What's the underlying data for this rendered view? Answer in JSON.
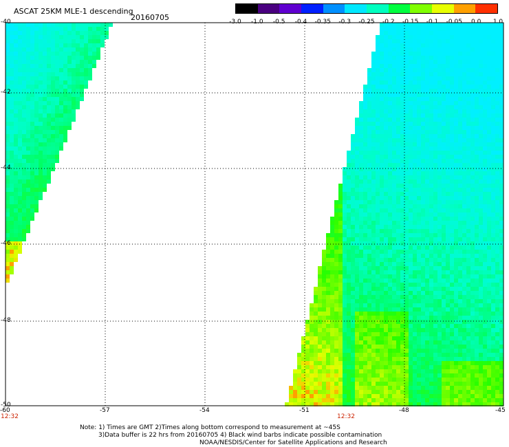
{
  "header": {
    "title": "ASCAT 25KM MLE-1 descending",
    "date": "20160705"
  },
  "colorbar": {
    "labels": [
      "-3.0",
      "-1.0",
      "-0.5",
      "-0.4",
      "-0.35",
      "-0.3",
      "-0.25",
      "-0.2",
      "-0.15",
      "-0.1",
      "-0.05",
      "0.0",
      "1.0"
    ],
    "colors": [
      "#000000",
      "#4a0080",
      "#6000d0",
      "#0020ff",
      "#0090ff",
      "#00e8ff",
      "#00ffc0",
      "#00ff40",
      "#80ff00",
      "#e8ff00",
      "#ffa000",
      "#ff3000"
    ]
  },
  "axes": {
    "x_ticks": [
      "-60",
      "-57",
      "-54",
      "-51",
      "-48",
      "-45"
    ],
    "y_ticks": [
      "-40",
      "-42",
      "-44",
      "-46",
      "-48",
      "-50"
    ]
  },
  "time_labels": [
    "12:32",
    "12:32"
  ],
  "notes": [
    "Note: 1) Times are GMT 2)Times along bottom correspond to measurement at ~45S",
    "3)Data buffer is 22 hrs from 20160705 4) Black wind barbs indicate possible contamination",
    "NOAA/NESDIS/Center for Satellite Applications and Research"
  ]
}
